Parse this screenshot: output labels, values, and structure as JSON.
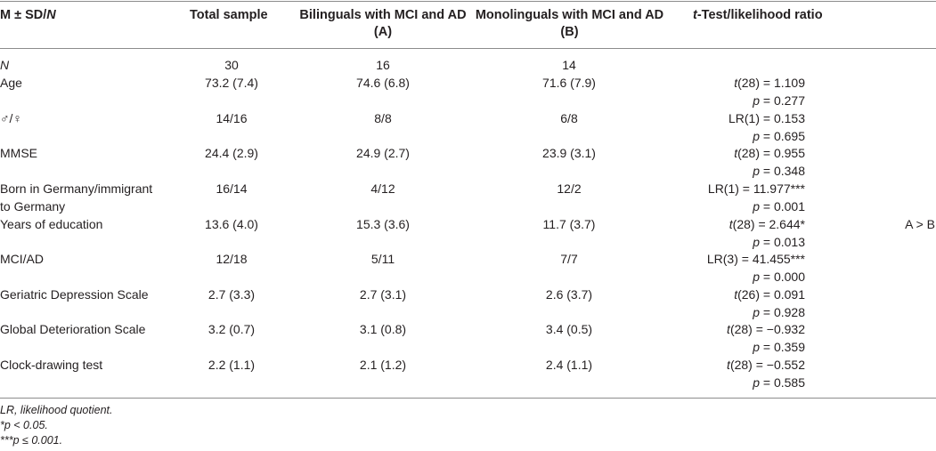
{
  "header": {
    "col1_prefix": "M ± SD/",
    "col1_italic": "N",
    "total": "Total sample",
    "bilinguals_l1": "Bilinguals with MCI and AD",
    "bilinguals_l2": "(A)",
    "monolinguals_l1": "Monolinguals with MCI and AD",
    "monolinguals_l2": "(B)",
    "test_italic": "t",
    "test_rest": "-Test/likelihood ratio"
  },
  "rows": [
    {
      "label": "N",
      "total": "30",
      "bi": "16",
      "mono": "14",
      "stat": "",
      "p": "",
      "comp": ""
    },
    {
      "label": "Age",
      "total": "73.2 (7.4)",
      "bi": "74.6 (6.8)",
      "mono": "71.6 (7.9)",
      "stat_pre": "t",
      "stat": "(28) = 1.109",
      "p_pre": "p",
      "p": " = 0.277",
      "comp": ""
    },
    {
      "label": "♂/♀",
      "total": "14/16",
      "bi": "8/8",
      "mono": "6/8",
      "stat_pre": "",
      "stat": "LR(1) = 0.153",
      "p_pre": "p",
      "p": " = 0.695",
      "comp": ""
    },
    {
      "label": "MMSE",
      "total": "24.4 (2.9)",
      "bi": "24.9 (2.7)",
      "mono": "23.9 (3.1)",
      "stat_pre": "t",
      "stat": "(28) = 0.955",
      "p_pre": "p",
      "p": " = 0.348",
      "comp": ""
    },
    {
      "label": "Born in Germany/immigrant",
      "label2": "to Germany",
      "total": "16/14",
      "bi": "4/12",
      "mono": "12/2",
      "stat_pre": "",
      "stat": "LR(1) = 11.977***",
      "p_pre": "p",
      "p": " = 0.001",
      "comp": ""
    },
    {
      "label": "Years of education",
      "total": "13.6 (4.0)",
      "bi": "15.3 (3.6)",
      "mono": "11.7 (3.7)",
      "stat_pre": "t",
      "stat": "(28) = 2.644*",
      "p_pre": "p",
      "p": " = 0.013",
      "comp": "A > B"
    },
    {
      "label": "MCI/AD",
      "total": "12/18",
      "bi": "5/11",
      "mono": "7/7",
      "stat_pre": "",
      "stat": "LR(3) = 41.455***",
      "p_pre": "p",
      "p": " = 0.000",
      "comp": ""
    },
    {
      "label": "Geriatric Depression Scale",
      "total": "2.7 (3.3)",
      "bi": "2.7 (3.1)",
      "mono": "2.6 (3.7)",
      "stat_pre": "t",
      "stat": "(26) = 0.091",
      "p_pre": "p",
      "p": " = 0.928",
      "comp": ""
    },
    {
      "label": "Global Deterioration Scale",
      "total": "3.2 (0.7)",
      "bi": "3.1 (0.8)",
      "mono": "3.4 (0.5)",
      "stat_pre": "t",
      "stat": "(28) = −0.932",
      "p_pre": "p",
      "p": " = 0.359",
      "comp": ""
    },
    {
      "label": "Clock-drawing test",
      "total": "2.2 (1.1)",
      "bi": "2.1 (1.2)",
      "mono": "2.4 (1.1)",
      "stat_pre": "t",
      "stat": "(28) = −0.552",
      "p_pre": "p",
      "p": " = 0.585",
      "comp": ""
    }
  ],
  "footnotes": [
    "LR, likelihood quotient.",
    "*p < 0.05.",
    "***p ≤ 0.001."
  ]
}
